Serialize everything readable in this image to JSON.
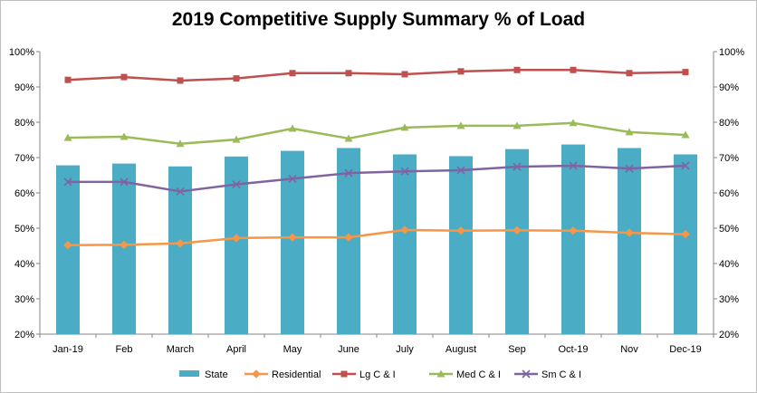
{
  "chart_data": {
    "type": "bar",
    "title": "2019 Competitive Supply Summary % of Load",
    "categories": [
      "Jan-19",
      "Feb",
      "March",
      "April",
      "May",
      "June",
      "July",
      "August",
      "Sep",
      "Oct-19",
      "Nov",
      "Dec-19"
    ],
    "ylim": [
      20,
      100
    ],
    "yticks": [
      "20%",
      "30%",
      "40%",
      "50%",
      "60%",
      "70%",
      "80%",
      "90%",
      "100%"
    ],
    "ytick_values": [
      20,
      30,
      40,
      50,
      60,
      70,
      80,
      90,
      100
    ],
    "grid": false,
    "legend_position": "bottom",
    "series": [
      {
        "name": "State",
        "kind": "bar",
        "color": "#4bacc6",
        "marker": "square",
        "values": [
          67.8,
          68.3,
          67.5,
          70.3,
          71.9,
          72.7,
          70.9,
          70.4,
          72.4,
          73.7,
          72.7,
          70.9
        ]
      },
      {
        "name": "Residential",
        "kind": "line",
        "color": "#f79646",
        "marker": "diamond",
        "values": [
          45.2,
          45.3,
          45.7,
          47.2,
          47.4,
          47.4,
          49.5,
          49.3,
          49.4,
          49.3,
          48.7,
          48.3
        ]
      },
      {
        "name": "Lg C & I",
        "kind": "line",
        "color": "#c0504d",
        "marker": "square",
        "values": [
          92.0,
          92.8,
          91.8,
          92.4,
          93.9,
          93.9,
          93.6,
          94.4,
          94.8,
          94.8,
          93.9,
          94.2
        ]
      },
      {
        "name": "Med C & I",
        "kind": "line",
        "color": "#9bbb59",
        "marker": "triangle",
        "values": [
          75.6,
          75.9,
          73.9,
          75.1,
          78.2,
          75.4,
          78.5,
          79.0,
          79.0,
          79.8,
          77.2,
          76.4
        ]
      },
      {
        "name": "Sm C & I",
        "kind": "line",
        "color": "#8064a2",
        "marker": "x",
        "values": [
          63.1,
          63.1,
          60.4,
          62.4,
          64.0,
          65.6,
          66.1,
          66.4,
          67.4,
          67.7,
          66.9,
          67.7
        ]
      }
    ]
  }
}
